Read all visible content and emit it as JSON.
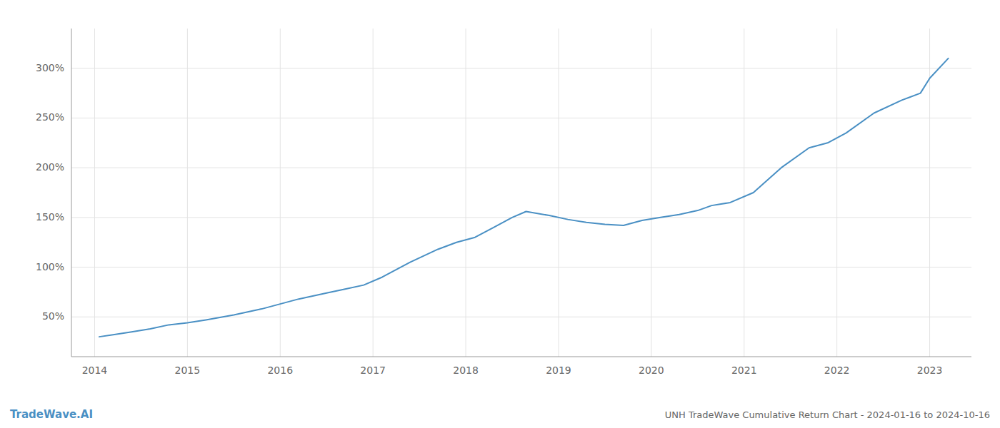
{
  "chart_data": {
    "type": "line",
    "title": "UNH TradeWave Cumulative Return Chart - 2024-01-16 to 2024-10-16",
    "annotations": [
      "TradeWave.AI"
    ],
    "color": "#4a90c4",
    "grid": true,
    "x": [
      2014.05,
      2014.2,
      2014.4,
      2014.6,
      2014.8,
      2015.0,
      2015.2,
      2015.5,
      2015.8,
      2016.0,
      2016.2,
      2016.5,
      2016.7,
      2016.9,
      2017.1,
      2017.4,
      2017.7,
      2017.9,
      2018.1,
      2018.3,
      2018.5,
      2018.65,
      2018.9,
      2019.1,
      2019.3,
      2019.5,
      2019.7,
      2019.9,
      2020.1,
      2020.3,
      2020.5,
      2020.65,
      2020.85,
      2021.1,
      2021.4,
      2021.7,
      2021.9,
      2022.1,
      2022.4,
      2022.7,
      2022.9,
      2023.0,
      2023.2
    ],
    "values": [
      30,
      32,
      35,
      38,
      42,
      44,
      47,
      52,
      58,
      63,
      68,
      74,
      78,
      82,
      90,
      105,
      118,
      125,
      130,
      140,
      150,
      156,
      152,
      148,
      145,
      143,
      142,
      147,
      150,
      153,
      157,
      162,
      165,
      175,
      200,
      220,
      225,
      235,
      255,
      268,
      275,
      290,
      310
    ],
    "xlim": [
      2013.75,
      2023.45
    ],
    "xticks": [
      2014,
      2015,
      2016,
      2017,
      2018,
      2019,
      2020,
      2021,
      2022,
      2023
    ],
    "ylim": [
      10,
      340
    ],
    "yticks": [
      {
        "value": 50,
        "label": "50%"
      },
      {
        "value": 100,
        "label": "100%"
      },
      {
        "value": 150,
        "label": "150%"
      },
      {
        "value": 200,
        "label": "200%"
      },
      {
        "value": 250,
        "label": "250%"
      },
      {
        "value": 300,
        "label": "300%"
      }
    ]
  }
}
